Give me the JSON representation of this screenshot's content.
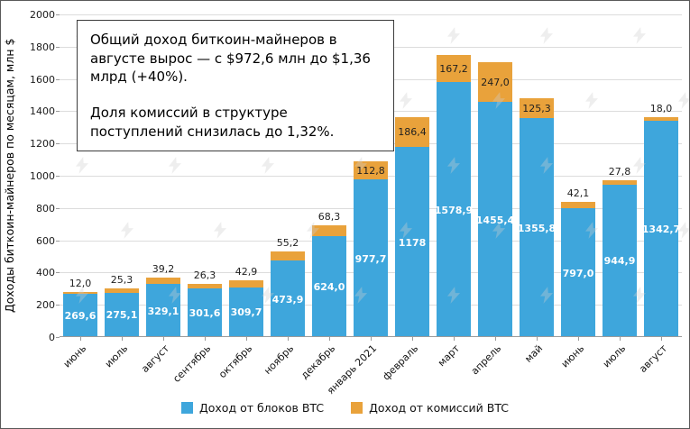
{
  "chart_data": {
    "type": "bar",
    "stacked": true,
    "title": "",
    "ylabel": "Доходы биткоин-майнеров по месяцам, млн $",
    "xlabel": "",
    "ylim": [
      0,
      2000
    ],
    "ytick_step": 200,
    "grid": true,
    "legend_position": "bottom",
    "categories": [
      "июнь",
      "июль",
      "август",
      "сентябрь",
      "октябрь",
      "ноябрь",
      "декабрь",
      "январь 2021",
      "февраль",
      "март",
      "апрель",
      "май",
      "июнь",
      "июль",
      "август"
    ],
    "series": [
      {
        "name": "Доход от блоков BTC",
        "color": "#3EA6DC",
        "values": [
          269.6,
          275.1,
          329.1,
          301.6,
          309.7,
          473.9,
          624.0,
          977.7,
          1178,
          1578.9,
          1455.4,
          1355.8,
          797.0,
          944.9,
          1342.7
        ],
        "labels": [
          "269,6",
          "275,1",
          "329,1",
          "301,6",
          "309,7",
          "473,9",
          "624,0",
          "977,7",
          "1178",
          "1578,9",
          "1455,4",
          "1355,8",
          "797,0",
          "944,9",
          "1342,7"
        ]
      },
      {
        "name": "Доход от комиссий BTC",
        "color": "#E9A23B",
        "values": [
          12.0,
          25.3,
          39.2,
          26.3,
          42.9,
          55.2,
          68.3,
          112.8,
          186.4,
          167.2,
          247.0,
          125.3,
          42.1,
          27.8,
          18.0
        ],
        "labels": [
          "12,0",
          "25,3",
          "39,2",
          "26,3",
          "42,9",
          "55,2",
          "68,3",
          "112,8",
          "186,4",
          "167,2",
          "247,0",
          "125,3",
          "42,1",
          "27,8",
          "18,0"
        ]
      }
    ]
  },
  "annotation": {
    "paragraph1": "Общий доход биткоин-майнеров в августе вырос — с $972,6 млн до $1,36 млрд (+40%).",
    "paragraph2": "Доля комиссий в структуре поступлений снизилась до 1,32%."
  },
  "colors": {
    "blocks": "#3EA6DC",
    "fees": "#E9A23B",
    "grid": "#dcdcdc",
    "axis": "#9b9b9b"
  },
  "watermark": {
    "name": "forklog-watermark"
  }
}
